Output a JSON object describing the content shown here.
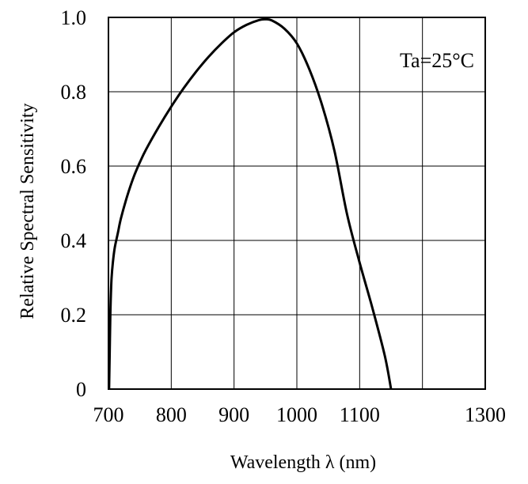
{
  "chart_data": {
    "type": "line",
    "title": "",
    "xlabel": "Wavelength  λ  (nm)",
    "ylabel": "Relative Spectral Sensitivity",
    "xlim": [
      700,
      1300
    ],
    "ylim": [
      0,
      1.0
    ],
    "xticks": [
      700,
      800,
      900,
      1000,
      1100,
      1300
    ],
    "xtick_labels": [
      "700",
      "800",
      "900",
      "1000",
      "1100",
      "1300"
    ],
    "yticks": [
      0,
      0.2,
      0.4,
      0.6,
      0.8,
      1.0
    ],
    "ytick_labels": [
      "0",
      "0.2",
      "0.4",
      "0.6",
      "0.8",
      "1.0"
    ],
    "grid": true,
    "annotation": "Ta=25°C",
    "series": [
      {
        "color": "#000000",
        "x": [
          701,
          702,
          703,
          704,
          705,
          707,
          710,
          715,
          720,
          730,
          740,
          750,
          760,
          780,
          800,
          820,
          840,
          860,
          880,
          900,
          920,
          940,
          950,
          960,
          980,
          1000,
          1020,
          1040,
          1060,
          1080,
          1100,
          1120,
          1140,
          1150
        ],
        "y": [
          0.0,
          0.1,
          0.2,
          0.26,
          0.3,
          0.34,
          0.38,
          0.42,
          0.46,
          0.52,
          0.57,
          0.61,
          0.645,
          0.705,
          0.76,
          0.81,
          0.855,
          0.895,
          0.93,
          0.96,
          0.98,
          0.993,
          0.995,
          0.992,
          0.97,
          0.93,
          0.86,
          0.765,
          0.64,
          0.47,
          0.34,
          0.22,
          0.09,
          0.0
        ]
      }
    ]
  }
}
